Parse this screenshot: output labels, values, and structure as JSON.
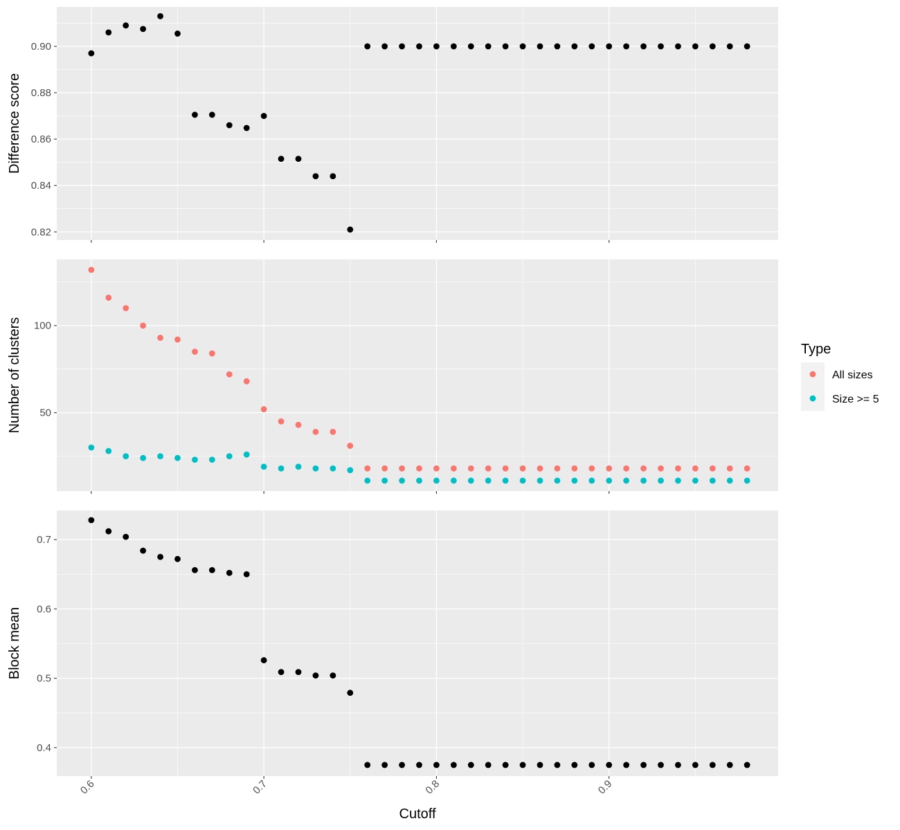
{
  "figure": {
    "x_axis_title": "Cutoff",
    "panel_background": "#ebebeb",
    "grid_color": "#ffffff"
  },
  "legend": {
    "title": "Type",
    "items": [
      {
        "label": "All sizes",
        "color": "#f8766d"
      },
      {
        "label": "Size >= 5",
        "color": "#00bfc4"
      }
    ]
  },
  "chart_data": [
    {
      "type": "scatter",
      "ylabel": "Difference score",
      "xlim": [
        0.58,
        0.998
      ],
      "ylim": [
        0.8165,
        0.917
      ],
      "x_ticks": [
        0.6,
        0.7,
        0.8,
        0.9
      ],
      "y_ticks": [
        0.82,
        0.84,
        0.86,
        0.88,
        0.9
      ],
      "y_tick_labels": [
        "0.82",
        "0.84",
        "0.86",
        "0.88",
        "0.90"
      ],
      "series": [
        {
          "color": "#000000",
          "x": [
            0.6,
            0.61,
            0.62,
            0.63,
            0.64,
            0.65,
            0.66,
            0.67,
            0.68,
            0.69,
            0.7,
            0.71,
            0.72,
            0.73,
            0.74,
            0.75,
            0.76,
            0.77,
            0.78,
            0.79,
            0.8,
            0.81,
            0.82,
            0.83,
            0.84,
            0.85,
            0.86,
            0.87,
            0.88,
            0.89,
            0.9,
            0.91,
            0.92,
            0.93,
            0.94,
            0.95,
            0.96,
            0.97,
            0.98
          ],
          "y": [
            0.897,
            0.906,
            0.909,
            0.9075,
            0.913,
            0.9055,
            0.8705,
            0.8705,
            0.866,
            0.8648,
            0.87,
            0.8515,
            0.8515,
            0.844,
            0.844,
            0.821,
            0.9,
            0.9,
            0.9,
            0.9,
            0.9,
            0.9,
            0.9,
            0.9,
            0.9,
            0.9,
            0.9,
            0.9,
            0.9,
            0.9,
            0.9,
            0.9,
            0.9,
            0.9,
            0.9,
            0.9,
            0.9,
            0.9,
            0.9
          ]
        }
      ]
    },
    {
      "type": "scatter",
      "ylabel": "Number of clusters",
      "xlim": [
        0.58,
        0.998
      ],
      "ylim": [
        5,
        138
      ],
      "x_ticks": [
        0.6,
        0.7,
        0.8,
        0.9
      ],
      "y_ticks": [
        50,
        100
      ],
      "y_tick_labels": [
        "50",
        "100"
      ],
      "legend_title": "Type",
      "series": [
        {
          "name": "All sizes",
          "color": "#f8766d",
          "x": [
            0.6,
            0.61,
            0.62,
            0.63,
            0.64,
            0.65,
            0.66,
            0.67,
            0.68,
            0.69,
            0.7,
            0.71,
            0.72,
            0.73,
            0.74,
            0.75,
            0.76,
            0.77,
            0.78,
            0.79,
            0.8,
            0.81,
            0.82,
            0.83,
            0.84,
            0.85,
            0.86,
            0.87,
            0.88,
            0.89,
            0.9,
            0.91,
            0.92,
            0.93,
            0.94,
            0.95,
            0.96,
            0.97,
            0.98
          ],
          "y": [
            132,
            116,
            110,
            100,
            93,
            92,
            85,
            84,
            72,
            68,
            52,
            45,
            43,
            39,
            39,
            31,
            18,
            18,
            18,
            18,
            18,
            18,
            18,
            18,
            18,
            18,
            18,
            18,
            18,
            18,
            18,
            18,
            18,
            18,
            18,
            18,
            18,
            18,
            18
          ]
        },
        {
          "name": "Size >= 5",
          "color": "#00bfc4",
          "x": [
            0.6,
            0.61,
            0.62,
            0.63,
            0.64,
            0.65,
            0.66,
            0.67,
            0.68,
            0.69,
            0.7,
            0.71,
            0.72,
            0.73,
            0.74,
            0.75,
            0.76,
            0.77,
            0.78,
            0.79,
            0.8,
            0.81,
            0.82,
            0.83,
            0.84,
            0.85,
            0.86,
            0.87,
            0.88,
            0.89,
            0.9,
            0.91,
            0.92,
            0.93,
            0.94,
            0.95,
            0.96,
            0.97,
            0.98
          ],
          "y": [
            30,
            28,
            25,
            24,
            25,
            24,
            23,
            23,
            25,
            26,
            19,
            18,
            19,
            18,
            18,
            17,
            11,
            11,
            11,
            11,
            11,
            11,
            11,
            11,
            11,
            11,
            11,
            11,
            11,
            11,
            11,
            11,
            11,
            11,
            11,
            11,
            11,
            11,
            11
          ]
        }
      ]
    },
    {
      "type": "scatter",
      "ylabel": "Block mean",
      "xlim": [
        0.58,
        0.998
      ],
      "ylim": [
        0.359,
        0.742
      ],
      "x_ticks": [
        0.6,
        0.7,
        0.8,
        0.9
      ],
      "x_tick_labels": [
        "0.6",
        "0.7",
        "0.8",
        "0.9"
      ],
      "y_ticks": [
        0.4,
        0.5,
        0.6,
        0.7
      ],
      "y_tick_labels": [
        "0.4",
        "0.5",
        "0.6",
        "0.7"
      ],
      "xlabel": "Cutoff",
      "series": [
        {
          "color": "#000000",
          "x": [
            0.6,
            0.61,
            0.62,
            0.63,
            0.64,
            0.65,
            0.66,
            0.67,
            0.68,
            0.69,
            0.7,
            0.71,
            0.72,
            0.73,
            0.74,
            0.75,
            0.76,
            0.77,
            0.78,
            0.79,
            0.8,
            0.81,
            0.82,
            0.83,
            0.84,
            0.85,
            0.86,
            0.87,
            0.88,
            0.89,
            0.9,
            0.91,
            0.92,
            0.93,
            0.94,
            0.95,
            0.96,
            0.97,
            0.98
          ],
          "y": [
            0.728,
            0.712,
            0.704,
            0.684,
            0.675,
            0.672,
            0.656,
            0.656,
            0.652,
            0.65,
            0.526,
            0.509,
            0.509,
            0.504,
            0.504,
            0.479,
            0.375,
            0.375,
            0.375,
            0.375,
            0.375,
            0.375,
            0.375,
            0.375,
            0.375,
            0.375,
            0.375,
            0.375,
            0.375,
            0.375,
            0.375,
            0.375,
            0.375,
            0.375,
            0.375,
            0.375,
            0.375,
            0.375,
            0.375
          ]
        }
      ]
    }
  ]
}
